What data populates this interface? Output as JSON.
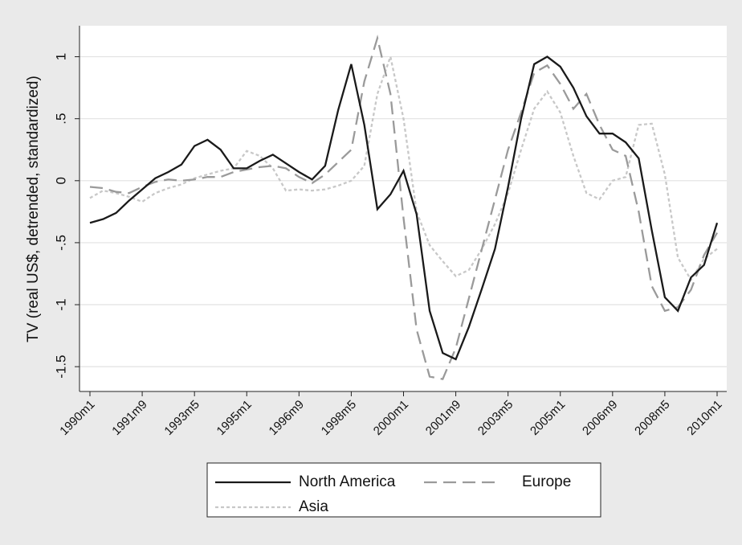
{
  "chart_data": {
    "type": "line",
    "y_label": "TV (real US$, detrended, standardized)",
    "x": [
      "1990m1",
      "1990m6",
      "1990m11",
      "1991m4",
      "1991m9",
      "1992m2",
      "1992m7",
      "1992m12",
      "1993m5",
      "1993m10",
      "1994m3",
      "1994m8",
      "1995m1",
      "1995m6",
      "1995m11",
      "1996m4",
      "1996m9",
      "1997m2",
      "1997m7",
      "1997m12",
      "1998m5",
      "1998m10",
      "1999m3",
      "1999m8",
      "2000m1",
      "2000m6",
      "2000m11",
      "2001m4",
      "2001m9",
      "2002m2",
      "2002m7",
      "2002m12",
      "2003m5",
      "2003m10",
      "2004m3",
      "2004m8",
      "2005m1",
      "2005m6",
      "2005m11",
      "2006m4",
      "2006m9",
      "2007m2",
      "2007m7",
      "2007m12",
      "2008m5",
      "2008m10",
      "2009m3",
      "2009m8",
      "2010m1"
    ],
    "series": [
      {
        "name": "North America",
        "color": "#1a1a1a",
        "dash": "solid",
        "values": [
          -0.34,
          -0.31,
          -0.26,
          -0.16,
          -0.07,
          0.02,
          0.07,
          0.13,
          0.28,
          0.33,
          0.25,
          0.1,
          0.1,
          0.16,
          0.21,
          0.14,
          0.07,
          0.01,
          0.12,
          0.57,
          0.94,
          0.45,
          -0.23,
          -0.11,
          0.08,
          -0.27,
          -1.05,
          -1.39,
          -1.44,
          -1.18,
          -0.87,
          -0.55,
          -0.05,
          0.5,
          0.94,
          1.0,
          0.92,
          0.75,
          0.52,
          0.38,
          0.38,
          0.31,
          0.18,
          -0.4,
          -0.94,
          -1.05,
          -0.78,
          -0.68,
          -0.34
        ]
      },
      {
        "name": "Europe",
        "color": "#9a9a9a",
        "dash": "dashed",
        "values": [
          -0.05,
          -0.06,
          -0.09,
          -0.1,
          -0.05,
          -0.01,
          0.01,
          0.0,
          0.01,
          0.03,
          0.03,
          0.07,
          0.09,
          0.11,
          0.12,
          0.1,
          0.03,
          -0.02,
          0.05,
          0.15,
          0.25,
          0.8,
          1.15,
          0.7,
          -0.3,
          -1.2,
          -1.58,
          -1.6,
          -1.35,
          -0.95,
          -0.55,
          -0.15,
          0.25,
          0.55,
          0.87,
          0.93,
          0.78,
          0.58,
          0.7,
          0.45,
          0.25,
          0.2,
          -0.25,
          -0.85,
          -1.05,
          -1.02,
          -0.88,
          -0.6,
          -0.42
        ]
      },
      {
        "name": "Asia",
        "color": "#c8c8c8",
        "dash": "dotted",
        "values": [
          -0.14,
          -0.08,
          -0.1,
          -0.13,
          -0.17,
          -0.1,
          -0.06,
          -0.03,
          0.02,
          0.05,
          0.08,
          0.1,
          0.24,
          0.2,
          0.1,
          -0.08,
          -0.07,
          -0.08,
          -0.07,
          -0.04,
          0.0,
          0.12,
          0.7,
          1.0,
          0.5,
          -0.25,
          -0.52,
          -0.65,
          -0.77,
          -0.72,
          -0.55,
          -0.35,
          -0.1,
          0.25,
          0.58,
          0.72,
          0.55,
          0.2,
          -0.1,
          -0.15,
          0.0,
          0.03,
          0.45,
          0.46,
          0.05,
          -0.62,
          -0.8,
          -0.63,
          -0.55
        ]
      }
    ],
    "xticks": [
      "1990m1",
      "1991m9",
      "1993m5",
      "1995m1",
      "1996m9",
      "1998m5",
      "2000m1",
      "2001m9",
      "2003m5",
      "2005m1",
      "2006m9",
      "2008m5",
      "2010m1"
    ],
    "ylim": [
      -1.7,
      1.25
    ],
    "yticks": [
      1,
      {
        "value": 0.5,
        "label": ".5"
      },
      0,
      {
        "value": -0.5,
        "label": "-.5"
      },
      -1,
      -1.5
    ],
    "grid": true
  }
}
